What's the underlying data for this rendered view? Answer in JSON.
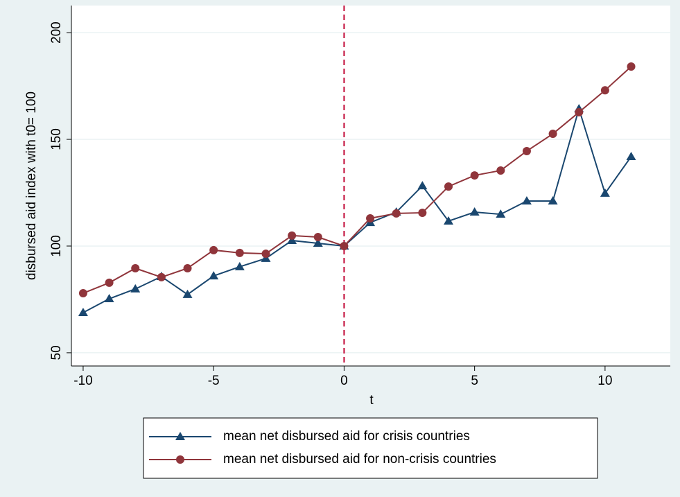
{
  "chart_data": {
    "type": "line",
    "x_label": "t",
    "y_label": "disbursed aid index with t0= 100",
    "x": [
      -10,
      -9,
      -8,
      -7,
      -6,
      -5,
      -4,
      -3,
      -2,
      -1,
      0,
      1,
      2,
      3,
      4,
      5,
      6,
      7,
      8,
      9,
      10,
      11
    ],
    "series": [
      {
        "name": "mean net disbursed aid for crisis countries",
        "color": "#1a476f",
        "marker": "triangle",
        "values": [
          68.8,
          75.3,
          79.9,
          85.7,
          77.3,
          86,
          90.3,
          94.2,
          102.6,
          101.3,
          100,
          111,
          115.9,
          128.2,
          111.7,
          115.9,
          114.9,
          121.1,
          121.1,
          164.3,
          124.7,
          141.9
        ]
      },
      {
        "name": "mean net disbursed aid for non-crisis countries",
        "color": "#90353b",
        "marker": "circle",
        "values": [
          77.9,
          82.8,
          89.6,
          85.4,
          89.6,
          98.1,
          96.8,
          96.4,
          104.9,
          104.2,
          100,
          113,
          115.3,
          115.6,
          127.9,
          133.1,
          135.4,
          144.5,
          152.6,
          162.7,
          173,
          184.1
        ]
      }
    ],
    "xlim": [
      -10.45,
      12.5
    ],
    "ylim": [
      43.8,
      212.7
    ],
    "xticks": [
      -10,
      -5,
      0,
      5,
      10
    ],
    "yticks": [
      50,
      100,
      150,
      200
    ],
    "grid": true,
    "xline": 0,
    "xline_color": "#c10534"
  }
}
